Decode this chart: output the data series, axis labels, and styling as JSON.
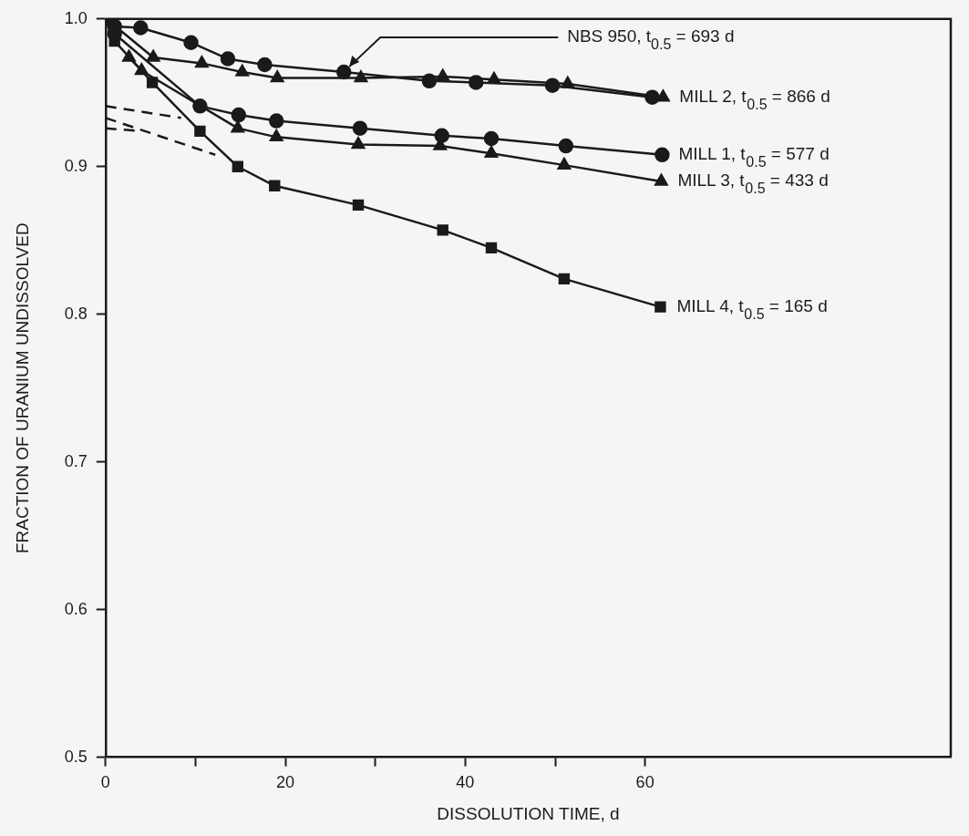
{
  "chart_data": {
    "type": "line",
    "xlabel": "DISSOLUTION TIME, d",
    "ylabel": "FRACTION OF URANIUM UNDISSOLVED",
    "xlim": [
      0,
      94
    ],
    "ylim": [
      0.5,
      1.0
    ],
    "xticks": [
      0,
      {
        "value": 10,
        "label": null
      },
      20,
      {
        "value": 30,
        "label": null
      },
      40,
      {
        "value": 50,
        "label": null
      },
      60
    ],
    "yticks": [
      0.5,
      0.6,
      0.7,
      0.8,
      0.9,
      {
        "value": 1.0,
        "label": "1.0"
      }
    ],
    "grid": false,
    "legend": false,
    "annotations": [
      {
        "text": "NBS 950, t$_{0.5}$ = 693 d",
        "x": 26.5,
        "y": 0.964
      }
    ],
    "series": [
      {
        "color": "#1a1a1a",
        "marker": "circle",
        "x": [
          1,
          3.9,
          9.5,
          13.6,
          17.7,
          26.5,
          36.0,
          41.2,
          49.7,
          60.8
        ],
        "values": [
          0.995,
          0.994,
          0.984,
          0.973,
          0.969,
          0.964,
          0.958,
          0.957,
          0.955,
          0.947
        ]
      },
      {
        "name": "MILL 2, t$_{0.5}$ = 866 d",
        "color": "#1a1a1a",
        "marker": "triangle",
        "x": [
          0.5,
          5.3,
          10.7,
          15.2,
          19.1,
          28.4,
          37.5,
          43.2,
          51.4,
          62
        ],
        "values": [
          0.998,
          0.974,
          0.97,
          0.964,
          0.96,
          0.96,
          0.961,
          0.959,
          0.956,
          0.947
        ]
      },
      {
        "name": "MILL 1, t$_{0.5}$ = 577 d",
        "color": "#1a1a1a",
        "marker": "circle",
        "x": [
          1,
          10.5,
          14.8,
          19.0,
          28.3,
          37.4,
          42.9,
          51.2,
          61.9
        ],
        "values": [
          0.99,
          0.941,
          0.935,
          0.931,
          0.926,
          0.921,
          0.919,
          0.914,
          0.908
        ]
      },
      {
        "name": "MILL 3, t$_{0.5}$ = 433 d",
        "color": "#1a1a1a",
        "marker": "triangle",
        "x": [
          2.6,
          4.0,
          14.7,
          19.0,
          28.1,
          37.2,
          42.9,
          51.0,
          61.8
        ],
        "values": [
          0.974,
          0.965,
          0.926,
          0.92,
          0.915,
          0.914,
          0.909,
          0.901,
          0.89
        ]
      },
      {
        "name": "MILL 4, t$_{0.5}$ = 165 d",
        "color": "#1a1a1a",
        "marker": "square",
        "x": [
          1,
          5.2,
          10.5,
          14.7,
          18.8,
          28.1,
          37.5,
          42.9,
          51.0,
          61.7
        ],
        "values": [
          0.985,
          0.957,
          0.924,
          0.9,
          0.887,
          0.874,
          0.857,
          0.845,
          0.824,
          0.805
        ]
      },
      {
        "color": "#1a1a1a",
        "marker": "none",
        "line_style": "dashed",
        "x": [
          0,
          8.4
        ],
        "values": [
          0.941,
          0.933
        ]
      },
      {
        "color": "#1a1a1a",
        "marker": "none",
        "line_style": "dashed",
        "x": [
          0,
          4
        ],
        "values": [
          0.926,
          0.924
        ]
      },
      {
        "color": "#1a1a1a",
        "marker": "none",
        "line_style": "dashed",
        "x": [
          0,
          12.2
        ],
        "values": [
          0.933,
          0.908
        ]
      }
    ]
  }
}
